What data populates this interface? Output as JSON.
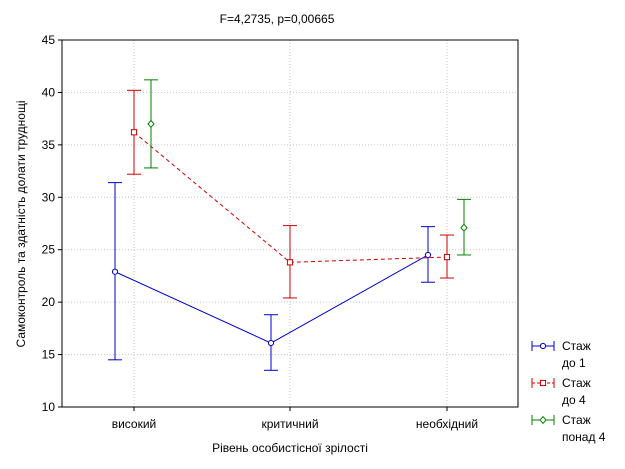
{
  "chart_data": {
    "type": "line",
    "title": "F=4,2735, p=0,00665",
    "xlabel": "Рівень особистісної зрілості",
    "ylabel": "Самоконтроль та здатність долати труднощі",
    "categories": [
      "високий",
      "критичний",
      "необхідний"
    ],
    "ylim": [
      10,
      45
    ],
    "yticks": [
      10,
      15,
      20,
      25,
      30,
      35,
      40,
      45
    ],
    "grid": true,
    "legend_position": "bottom-right",
    "series": [
      {
        "name": "Стаж до 1",
        "legend_lines": [
          "Стаж",
          "до 1"
        ],
        "color": "#0000cc",
        "line_style": "solid",
        "marker": "circle",
        "connect_points": [
          0,
          1,
          2
        ],
        "values": [
          22.9,
          16.1,
          24.5
        ],
        "err_low": [
          14.5,
          13.5,
          21.9
        ],
        "err_high": [
          31.4,
          18.8,
          27.2
        ]
      },
      {
        "name": "Стаж до 4",
        "legend_lines": [
          "Стаж",
          "до 4"
        ],
        "color": "#cc0000",
        "line_style": "dashed",
        "marker": "square",
        "connect_points": [
          0,
          1,
          2
        ],
        "values": [
          36.2,
          23.8,
          24.3
        ],
        "err_low": [
          32.2,
          20.4,
          22.3
        ],
        "err_high": [
          40.2,
          27.3,
          26.4
        ]
      },
      {
        "name": "Стаж понад 4",
        "legend_lines": [
          "Стаж",
          "понад 4"
        ],
        "color": "#008000",
        "line_style": "solid",
        "marker": "diamond",
        "connect_points": [],
        "values": [
          37.0,
          null,
          27.1
        ],
        "err_low": [
          32.8,
          null,
          24.5
        ],
        "err_high": [
          41.2,
          null,
          29.8
        ]
      }
    ]
  }
}
